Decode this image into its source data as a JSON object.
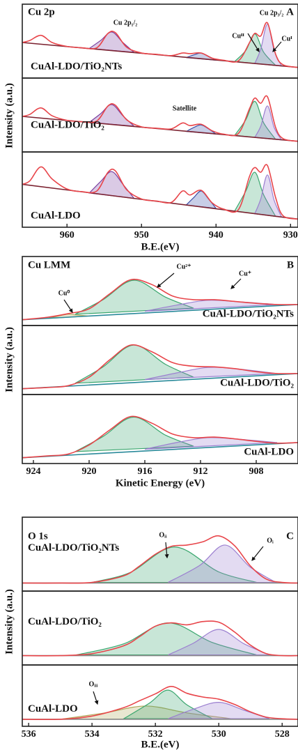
{
  "chart_data": [
    {
      "type": "line",
      "title": "Cu 2p",
      "letter": "A",
      "ylabel": "Intensity (a.u.)",
      "xlabel": "B.E.(eV)",
      "xlim": [
        966,
        929
      ],
      "xticks": [
        960,
        950,
        940,
        930
      ],
      "x": [
        966,
        965,
        963.5,
        962,
        960,
        958,
        956,
        954.5,
        953.5,
        952,
        950,
        948,
        946,
        944.5,
        943.5,
        942,
        940.5,
        939,
        937,
        935.5,
        934.8,
        934,
        933.1,
        932,
        931,
        929
      ],
      "panels": [
        {
          "label": "CuAl-LDO/TiO₂NTs",
          "ylim": [
            0,
            100
          ],
          "annotations": [
            "Cu 2p₁/₂",
            "Cu 2p₃/₂",
            "Cuᴵᴵ",
            "Cuᴵ"
          ],
          "series": [
            {
              "color": "#7a3fa0",
              "fill": true,
              "x": [
                957,
                955.5,
                954,
                952.5,
                951
              ],
              "values": [
                41,
                53,
                66,
                50,
                35
              ]
            },
            {
              "color": "#3b4fa8",
              "fill": true,
              "x": [
                944,
                943,
                942,
                941,
                940
              ],
              "values": [
                27,
                31,
                34,
                29,
                23
              ]
            },
            {
              "color": "#3aa66e",
              "fill": true,
              "x": [
                937.5,
                936,
                934.8,
                933.6,
                932
              ],
              "values": [
                21,
                38,
                63,
                35,
                15
              ]
            },
            {
              "color": "#9b7fd0",
              "fill": true,
              "x": [
                934.8,
                934,
                933.1,
                932.2,
                931.2
              ],
              "values": [
                18,
                40,
                78,
                38,
                14
              ]
            },
            {
              "color": "#7b2230",
              "x": [
                966,
                929
              ],
              "values": [
                50,
                12
              ]
            },
            {
              "color": "#e8454a",
              "values": [
                50,
                53,
                61,
                50,
                44,
                42,
                42,
                64,
                65,
                43,
                34,
                32,
                30,
                34,
                33,
                34,
                26,
                23,
                22,
                50,
                64,
                60,
                80,
                32,
                16,
                12
              ]
            }
          ]
        },
        {
          "label": "CuAl-LDO/TiO₂",
          "ylim": [
            0,
            100
          ],
          "annotations": [
            "Satellite"
          ],
          "series": [
            {
              "color": "#7a3fa0",
              "fill": true,
              "x": [
                957,
                955.5,
                954,
                952.5,
                951
              ],
              "values": [
                41,
                54,
                68,
                51,
                35
              ]
            },
            {
              "color": "#3b4fa8",
              "fill": true,
              "x": [
                944,
                943,
                942,
                941,
                940
              ],
              "values": [
                27,
                33,
                37,
                31,
                23
              ]
            },
            {
              "color": "#3aa66e",
              "fill": true,
              "x": [
                937.5,
                936,
                934.8,
                933.6,
                932
              ],
              "values": [
                21,
                45,
                73,
                40,
                15
              ]
            },
            {
              "color": "#9b7fd0",
              "fill": true,
              "x": [
                934.8,
                934,
                933.1,
                932.2,
                931.2
              ],
              "values": [
                18,
                35,
                66,
                33,
                14
              ]
            },
            {
              "color": "#7b2230",
              "x": [
                966,
                929
              ],
              "values": [
                50,
                12
              ]
            },
            {
              "color": "#e8454a",
              "values": [
                50,
                53,
                63,
                51,
                44,
                42,
                43,
                66,
                67,
                45,
                34,
                32,
                31,
                40,
                36,
                38,
                28,
                23,
                24,
                62,
                78,
                70,
                80,
                33,
                16,
                12
              ]
            }
          ]
        },
        {
          "label": "CuAl-LDO",
          "ylim": [
            0,
            100
          ],
          "series": [
            {
              "color": "#7a3fa0",
              "fill": true,
              "x": [
                957,
                955.5,
                954,
                952.5,
                951
              ],
              "values": [
                47,
                64,
                79,
                60,
                39
              ]
            },
            {
              "color": "#3b4fa8",
              "fill": true,
              "x": [
                944,
                943,
                942,
                941,
                940
              ],
              "values": [
                29,
                40,
                50,
                38,
                24
              ]
            },
            {
              "color": "#3aa66e",
              "fill": true,
              "x": [
                937.5,
                936,
                934.8,
                933.6,
                932
              ],
              "values": [
                20,
                50,
                78,
                44,
                12
              ]
            },
            {
              "color": "#9b7fd0",
              "fill": true,
              "x": [
                934.8,
                934,
                933.1,
                932.2,
                931.2
              ],
              "values": [
                16,
                38,
                74,
                36,
                11
              ]
            },
            {
              "color": "#7b2230",
              "x": [
                966,
                929
              ],
              "values": [
                60,
                8
              ]
            },
            {
              "color": "#e8454a",
              "values": [
                60,
                65,
                86,
                68,
                53,
                49,
                50,
                78,
                80,
                52,
                38,
                35,
                33,
                50,
                44,
                51,
                32,
                23,
                22,
                72,
                85,
                78,
                88,
                40,
                13,
                8
              ]
            }
          ]
        }
      ]
    },
    {
      "type": "line",
      "title": "Cu LMM",
      "letter": "B",
      "ylabel": "Intensity (a.u.)",
      "xlabel": "Kinetic Energy (eV)",
      "xlim": [
        924.8,
        905
      ],
      "xticks": [
        924,
        920,
        916,
        912,
        908
      ],
      "x": [
        924.8,
        923,
        921.5,
        920,
        918.5,
        917,
        915.5,
        914,
        912.5,
        911,
        909.5,
        908,
        906.5,
        905
      ],
      "panels": [
        {
          "label": "CuAl-LDO/TiO₂NTs",
          "ylim": [
            0,
            100
          ],
          "annotations": [
            "Cu⁰",
            "Cu²⁺",
            "Cu⁺"
          ],
          "series": [
            {
              "color": "#b0a85a",
              "fill": true,
              "x": [
                923,
                922,
                921.5,
                921,
                920
              ],
              "values": [
                7,
                12,
                14,
                13,
                11
              ]
            },
            {
              "color": "#3aa66e",
              "fill": true,
              "x": [
                921,
                919,
                916.8,
                914.5,
                912.5
              ],
              "values": [
                14,
                38,
                70,
                42,
                24
              ]
            },
            {
              "color": "#9b7fd0",
              "fill": true,
              "x": [
                916,
                913.5,
                911.5,
                909.5,
                906.5
              ],
              "values": [
                19,
                30,
                37,
                35,
                30
              ]
            },
            {
              "color": "#2a8a9a",
              "x": [
                924.8,
                905
              ],
              "values": [
                5,
                30
              ]
            },
            {
              "color": "#e8454a",
              "values": [
                5,
                9,
                15,
                23,
                48,
                71,
                63,
                44,
                38,
                38,
                35,
                32,
                30,
                30
              ]
            }
          ]
        },
        {
          "label": "CuAl-LDO/TiO₂",
          "ylim": [
            0,
            100
          ],
          "series": [
            {
              "color": "#3aa66e",
              "fill": true,
              "x": [
                921,
                919,
                916.8,
                914.5,
                912.5
              ],
              "values": [
                14,
                41,
                77,
                45,
                24
              ]
            },
            {
              "color": "#9b7fd0",
              "fill": true,
              "x": [
                916,
                913.5,
                911.5,
                909.5,
                906.5
              ],
              "values": [
                20,
                32,
                40,
                38,
                30
              ]
            },
            {
              "color": "#2a8a9a",
              "x": [
                924.8,
                905
              ],
              "values": [
                5,
                30
              ]
            },
            {
              "color": "#e8454a",
              "values": [
                5,
                7,
                10,
                24,
                53,
                77,
                66,
                48,
                42,
                41,
                38,
                33,
                30,
                30
              ]
            }
          ]
        },
        {
          "label": "CuAl-LDO",
          "ylim": [
            0,
            100
          ],
          "series": [
            {
              "color": "#3aa66e",
              "fill": true,
              "x": [
                921,
                919,
                916.8,
                914.5,
                912.5
              ],
              "values": [
                15,
                40,
                72,
                42,
                24
              ]
            },
            {
              "color": "#9b7fd0",
              "fill": true,
              "x": [
                916,
                913.5,
                911.5,
                909.5,
                906.5
              ],
              "values": [
                19,
                31,
                38,
                36,
                30
              ]
            },
            {
              "color": "#2a8a9a",
              "x": [
                924.8,
                905
              ],
              "values": [
                5,
                30
              ]
            },
            {
              "color": "#e8454a",
              "values": [
                5,
                8,
                11,
                26,
                51,
                73,
                62,
                44,
                38,
                39,
                36,
                32,
                29,
                30
              ]
            }
          ]
        }
      ]
    },
    {
      "type": "line",
      "title": "O 1s",
      "letter": "C",
      "ylabel": "Intensity (a.u.)",
      "xlabel": "B.E.(eV)",
      "xlim": [
        536.2,
        527.5
      ],
      "xticks": [
        536,
        534,
        532,
        530,
        528
      ],
      "x": [
        536.2,
        535,
        534,
        533,
        532.5,
        532,
        531.5,
        531,
        530.5,
        530,
        529.5,
        529,
        528.5,
        528,
        527.5
      ],
      "panels": [
        {
          "label": "CuAl-LDO/TiO₂NTs",
          "ylim": [
            0,
            100
          ],
          "annotations": [
            "Oᵢᵢ",
            "Oᵢ"
          ],
          "series": [
            {
              "color": "#3aa66e",
              "fill": true,
              "x": [
                534,
                532.8,
                531.4,
                530,
                528.8
              ],
              "values": [
                9,
                24,
                63,
                25,
                9
              ]
            },
            {
              "color": "#9b7fd0",
              "fill": true,
              "x": [
                531.6,
                530.6,
                529.8,
                529,
                528.2
              ],
              "values": [
                9,
                35,
                66,
                32,
                9
              ]
            },
            {
              "color": "#8a8a8a",
              "x": [
                536.2,
                527.5
              ],
              "values": [
                8,
                8
              ]
            },
            {
              "color": "#e8454a",
              "values": [
                8,
                8,
                9,
                19,
                34,
                52,
                64,
                66,
                71,
                80,
                65,
                34,
                14,
                9,
                8
              ]
            }
          ]
        },
        {
          "label": "CuAl-LDO/TiO₂",
          "ylim": [
            0,
            100
          ],
          "series": [
            {
              "color": "#3aa66e",
              "fill": true,
              "x": [
                534.5,
                533,
                531.6,
                530.2,
                528.8
              ],
              "values": [
                11,
                28,
                60,
                30,
                11
              ]
            },
            {
              "color": "#9b7fd0",
              "fill": true,
              "x": [
                531.6,
                530.8,
                530,
                529.2,
                528.4
              ],
              "values": [
                11,
                29,
                50,
                28,
                11
              ]
            },
            {
              "color": "#8a8a8a",
              "x": [
                536.2,
                527.5
              ],
              "values": [
                10,
                10
              ]
            },
            {
              "color": "#e8454a",
              "values": [
                10,
                10,
                13,
                25,
                39,
                55,
                60,
                57,
                62,
                61,
                46,
                26,
                13,
                10,
                10
              ]
            }
          ]
        },
        {
          "label": "CuAl-LDO",
          "ylim": [
            0,
            100
          ],
          "annotations": [
            "Oᵢᵢᵢ"
          ],
          "series": [
            {
              "color": "#b0a85a",
              "fill": true,
              "x": [
                535,
                533.6,
                532.3,
                531,
                529.6
              ],
              "values": [
                8,
                20,
                33,
                20,
                9
              ]
            },
            {
              "color": "#3aa66e",
              "fill": true,
              "x": [
                533,
                532.2,
                531.6,
                531,
                530.2
              ],
              "values": [
                9,
                38,
                63,
                35,
                9
              ]
            },
            {
              "color": "#9b7fd0",
              "fill": true,
              "x": [
                531.6,
                530.8,
                530,
                529.2,
                528.4
              ],
              "values": [
                9,
                27,
                40,
                25,
                9
              ]
            },
            {
              "color": "#8a8a8a",
              "x": [
                536.2,
                527.5
              ],
              "values": [
                8,
                8
              ]
            },
            {
              "color": "#e8454a",
              "values": [
                8,
                8,
                14,
                30,
                43,
                56,
                70,
                57,
                50,
                46,
                36,
                22,
                12,
                9,
                8
              ]
            }
          ]
        }
      ]
    }
  ]
}
